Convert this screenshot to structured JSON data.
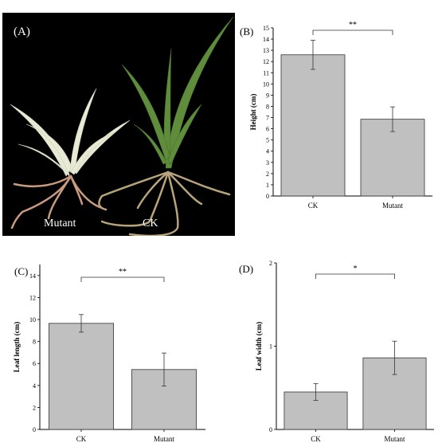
{
  "photo": {
    "panel_label": "(A)",
    "caption_left": "Mutant",
    "caption_right": "CK"
  },
  "chart_data": [
    {
      "type": "bar",
      "panel_label": "(B)",
      "categories": [
        "CK",
        "Mutant"
      ],
      "values": [
        12.6,
        6.85
      ],
      "errors": [
        1.3,
        1.1
      ],
      "ylabel": "Height (cm)",
      "ylim": [
        0,
        15
      ],
      "yticks": [
        0,
        1,
        2,
        3,
        4,
        5,
        6,
        7,
        8,
        9,
        10,
        11,
        12,
        13,
        14,
        15
      ],
      "significance": "**",
      "bar_color": "#c0c0c0"
    },
    {
      "type": "bar",
      "panel_label": "(C)",
      "categories": [
        "CK",
        "Mutant"
      ],
      "values": [
        9.65,
        5.45
      ],
      "errors": [
        0.8,
        1.5
      ],
      "ylabel": "Leaf length (cm)",
      "ylim": [
        0,
        15
      ],
      "yticks": [
        0,
        2,
        4,
        6,
        8,
        10,
        12,
        14
      ],
      "significance": "**",
      "bar_color": "#c0c0c0"
    },
    {
      "type": "bar",
      "panel_label": "(D)",
      "categories": [
        "CK",
        "Mutant"
      ],
      "values": [
        0.45,
        0.86
      ],
      "errors": [
        0.1,
        0.2
      ],
      "ylabel": "Leaf width (cm)",
      "ylim": [
        0,
        2
      ],
      "yticks": [
        0,
        1,
        2
      ],
      "significance": "*",
      "bar_color": "#c0c0c0"
    }
  ]
}
